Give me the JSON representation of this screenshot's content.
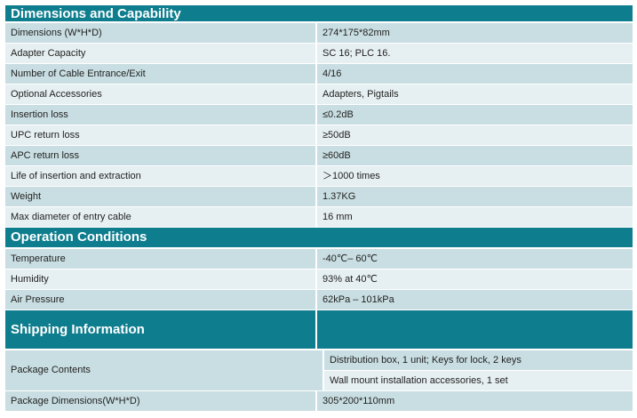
{
  "dimensions": {
    "title": "Dimensions and Capability",
    "rows": [
      {
        "label": "Dimensions (W*H*D)",
        "value": "274*175*82mm"
      },
      {
        "label": "Adapter Capacity",
        "value": "SC 16; PLC 16."
      },
      {
        "label": "Number of Cable Entrance/Exit",
        "value": "4/16"
      },
      {
        "label": "Optional Accessories",
        "value": "Adapters, Pigtails"
      },
      {
        "label": "Insertion loss",
        "value": "≤0.2dB"
      },
      {
        "label": "UPC return loss",
        "value": "≥50dB"
      },
      {
        "label": "APC return loss",
        "value": "≥60dB"
      },
      {
        "label": "Life of insertion and extraction",
        "value": "＞1000 times"
      },
      {
        "label": "Weight",
        "value": "1.37KG"
      },
      {
        "label": "Max diameter of entry cable",
        "value": "16 mm"
      }
    ]
  },
  "operation": {
    "title": "Operation Conditions",
    "rows": [
      {
        "label": "Temperature",
        "value": "-40℃– 60℃"
      },
      {
        "label": "Humidity",
        "value": "93% at 40℃"
      },
      {
        "label": "Air Pressure",
        "value": "62kPa – 101kPa"
      }
    ]
  },
  "shipping": {
    "title": "Shipping Information",
    "package_contents": {
      "label": "Package Contents",
      "values": [
        "Distribution box, 1 unit; Keys for lock, 2 keys",
        "Wall mount installation accessories, 1 set"
      ]
    },
    "package_dimensions": {
      "label": "Package Dimensions(W*H*D)",
      "value": "305*200*110mm"
    }
  }
}
